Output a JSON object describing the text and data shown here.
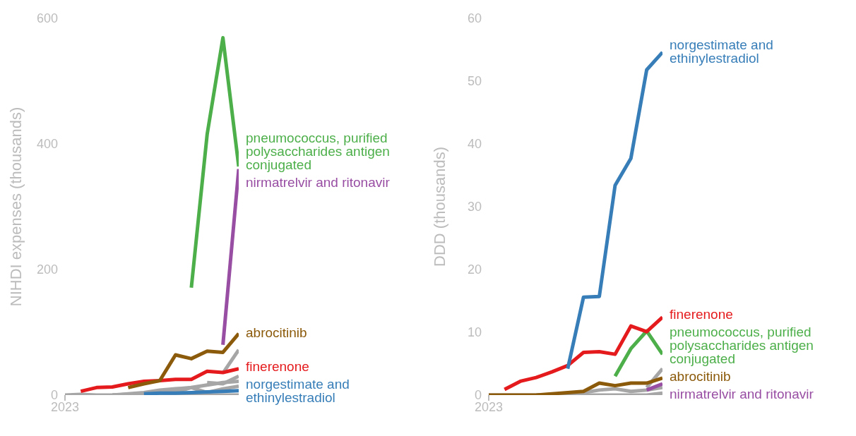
{
  "chart_data": [
    {
      "type": "line",
      "ylabel": "NIHDI expenses (thousands)",
      "categories": [
        "2023",
        null,
        null,
        null,
        null,
        null,
        null,
        null,
        null,
        null,
        null,
        null
      ],
      "ylim": [
        0,
        600
      ],
      "yticks": [
        0,
        200,
        400,
        600
      ],
      "grid": false,
      "legend": false,
      "series": [
        {
          "color": "#a6a6a6",
          "values": [
            0,
            1,
            0,
            0,
            2,
            4,
            8,
            10,
            12,
            16,
            20,
            22
          ]
        },
        {
          "color": "#a6a6a6",
          "values": [
            null,
            null,
            null,
            0,
            0,
            0,
            0,
            0,
            0,
            0,
            0,
            0
          ]
        },
        {
          "color": "#a6a6a6",
          "values": [
            null,
            null,
            null,
            0,
            1,
            3,
            6,
            5,
            12,
            4,
            10,
            14
          ]
        },
        {
          "color": "#a6a6a6",
          "values": [
            null,
            null,
            null,
            null,
            null,
            null,
            null,
            null,
            null,
            20,
            18,
            30
          ]
        },
        {
          "color": "#a6a6a6",
          "values": [
            null,
            null,
            null,
            null,
            null,
            null,
            null,
            null,
            null,
            null,
            35,
            72
          ]
        },
        {
          "name": "norgestimate and ethinylestradiol",
          "color": "#377eb8",
          "values": [
            null,
            null,
            null,
            null,
            null,
            2,
            3,
            3,
            4,
            5,
            6,
            7
          ]
        },
        {
          "name": "finerenone",
          "color": "#e41a1c",
          "values": [
            null,
            6,
            12,
            13,
            18,
            22,
            23,
            25,
            25,
            38,
            36,
            42
          ]
        },
        {
          "name": "abrocitinib",
          "color": "#8b5a0b",
          "values": [
            null,
            null,
            null,
            null,
            12,
            18,
            23,
            64,
            58,
            70,
            68,
            98
          ]
        },
        {
          "name": "nirmatrelvir and ritonavir",
          "color": "#984ea3",
          "values": [
            null,
            null,
            null,
            null,
            null,
            null,
            null,
            null,
            null,
            null,
            80,
            360
          ]
        },
        {
          "name": "pneumococcus, purified polysaccharides antigen conjugated",
          "color": "#4daf4a",
          "values": [
            null,
            null,
            null,
            null,
            null,
            null,
            null,
            null,
            171,
            415,
            569,
            364
          ]
        }
      ]
    },
    {
      "type": "line",
      "ylabel": "DDD (thousands)",
      "categories": [
        "2023",
        null,
        null,
        null,
        null,
        null,
        null,
        null,
        null,
        null,
        null,
        null
      ],
      "ylim": [
        0,
        60
      ],
      "yticks": [
        0,
        10,
        20,
        30,
        40,
        50,
        60
      ],
      "grid": false,
      "legend": false,
      "series": [
        {
          "color": "#a6a6a6",
          "values": [
            0,
            0,
            0,
            0,
            0.1,
            0.2,
            0.4,
            0.8,
            1.0,
            0.6,
            0.8,
            1.2
          ]
        },
        {
          "color": "#a6a6a6",
          "values": [
            null,
            null,
            null,
            0,
            0,
            0,
            0,
            0,
            0,
            0,
            0,
            0.3
          ]
        },
        {
          "color": "#a6a6a6",
          "values": [
            null,
            null,
            null,
            null,
            null,
            null,
            null,
            null,
            null,
            null,
            1.2,
            4.2
          ]
        },
        {
          "name": "nirmatrelvir and ritonavir",
          "color": "#984ea3",
          "values": [
            null,
            null,
            null,
            null,
            null,
            null,
            null,
            null,
            null,
            null,
            0.8,
            1.8
          ]
        },
        {
          "name": "abrocitinib",
          "color": "#8b5a0b",
          "values": [
            0,
            0,
            0,
            0,
            0.2,
            0.4,
            0.6,
            1.9,
            1.5,
            1.9,
            1.9,
            2.7
          ]
        },
        {
          "name": "pneumococcus, purified polysaccharides antigen conjugated",
          "color": "#4daf4a",
          "values": [
            null,
            null,
            null,
            null,
            null,
            null,
            null,
            null,
            3.0,
            7.4,
            10.2,
            6.5
          ]
        },
        {
          "name": "finerenone",
          "color": "#e41a1c",
          "values": [
            null,
            0.9,
            2.2,
            2.8,
            3.7,
            4.7,
            6.8,
            6.9,
            6.5,
            11.0,
            10.1,
            12.4
          ]
        },
        {
          "name": "norgestimate and ethinylestradiol",
          "color": "#377eb8",
          "values": [
            null,
            null,
            null,
            null,
            null,
            4.2,
            15.6,
            15.7,
            33.4,
            37.7,
            51.8,
            54.6
          ]
        }
      ]
    }
  ]
}
